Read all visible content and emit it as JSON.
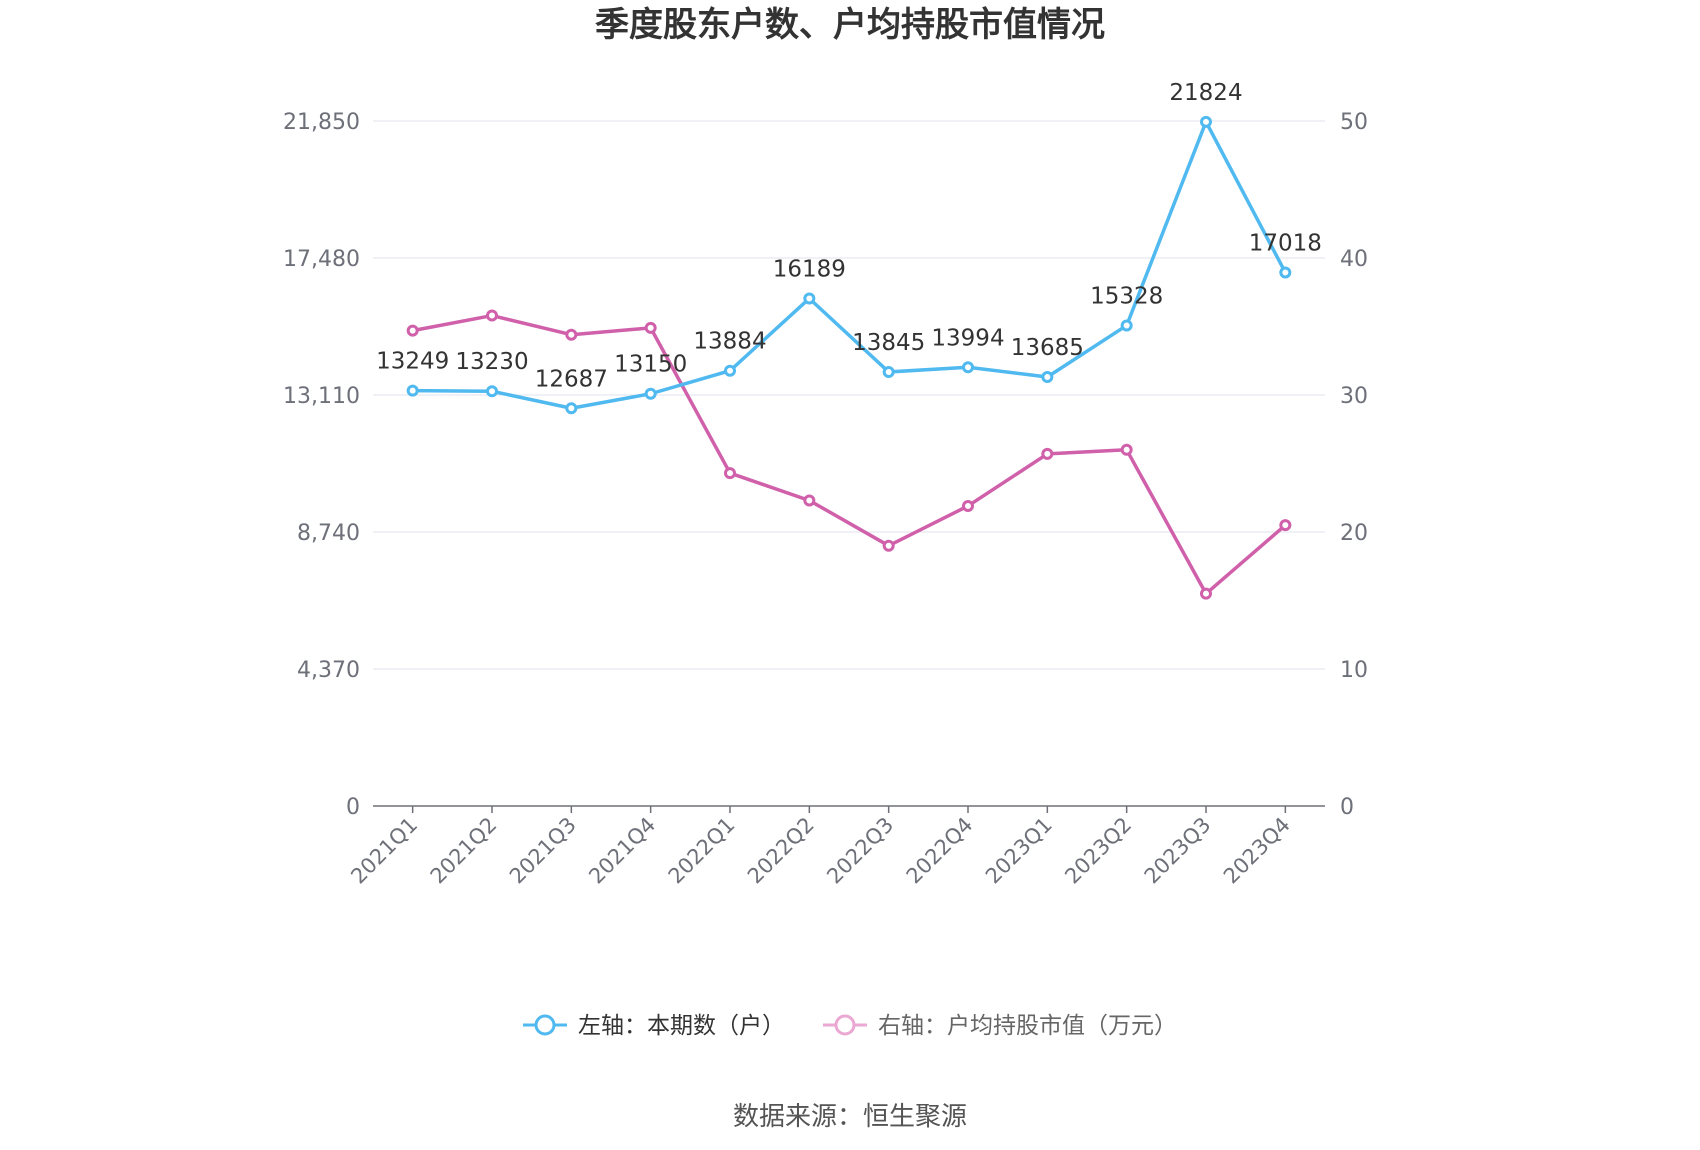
{
  "chart_data": {
    "type": "line",
    "title": "季度股东户数、户均持股市值情况",
    "categories": [
      "2021Q1",
      "2021Q2",
      "2021Q3",
      "2021Q4",
      "2022Q1",
      "2022Q2",
      "2022Q3",
      "2022Q4",
      "2023Q1",
      "2023Q2",
      "2023Q3",
      "2023Q4"
    ],
    "left_axis": {
      "ticks": [
        "0",
        "4,370",
        "8,740",
        "13,110",
        "17,480",
        "21,850"
      ],
      "ylim": [
        0,
        21850
      ]
    },
    "right_axis": {
      "ticks": [
        "0",
        "10",
        "20",
        "30",
        "40",
        "50"
      ],
      "ylim": [
        0,
        50
      ]
    },
    "series": [
      {
        "name": "左轴：本期数（户）",
        "axis": "left",
        "color": "#4fb9f0",
        "values": [
          13249,
          13230,
          12687,
          13150,
          13884,
          16189,
          13845,
          13994,
          13685,
          15328,
          21824,
          17018
        ],
        "labels": [
          "13249",
          "13230",
          "12687",
          "13150",
          "13884",
          "16189",
          "13845",
          "13994",
          "13685",
          "15328",
          "21824",
          "17018"
        ]
      },
      {
        "name": "右轴：户均持股市值（万元）",
        "axis": "right",
        "color": "#d060aa",
        "values": [
          34.7,
          35.8,
          34.4,
          34.9,
          24.3,
          22.3,
          19.0,
          21.9,
          25.7,
          26.0,
          15.5,
          20.5
        ]
      }
    ],
    "grid": true,
    "legend_position": "bottom"
  },
  "source": "数据来源：恒生聚源"
}
